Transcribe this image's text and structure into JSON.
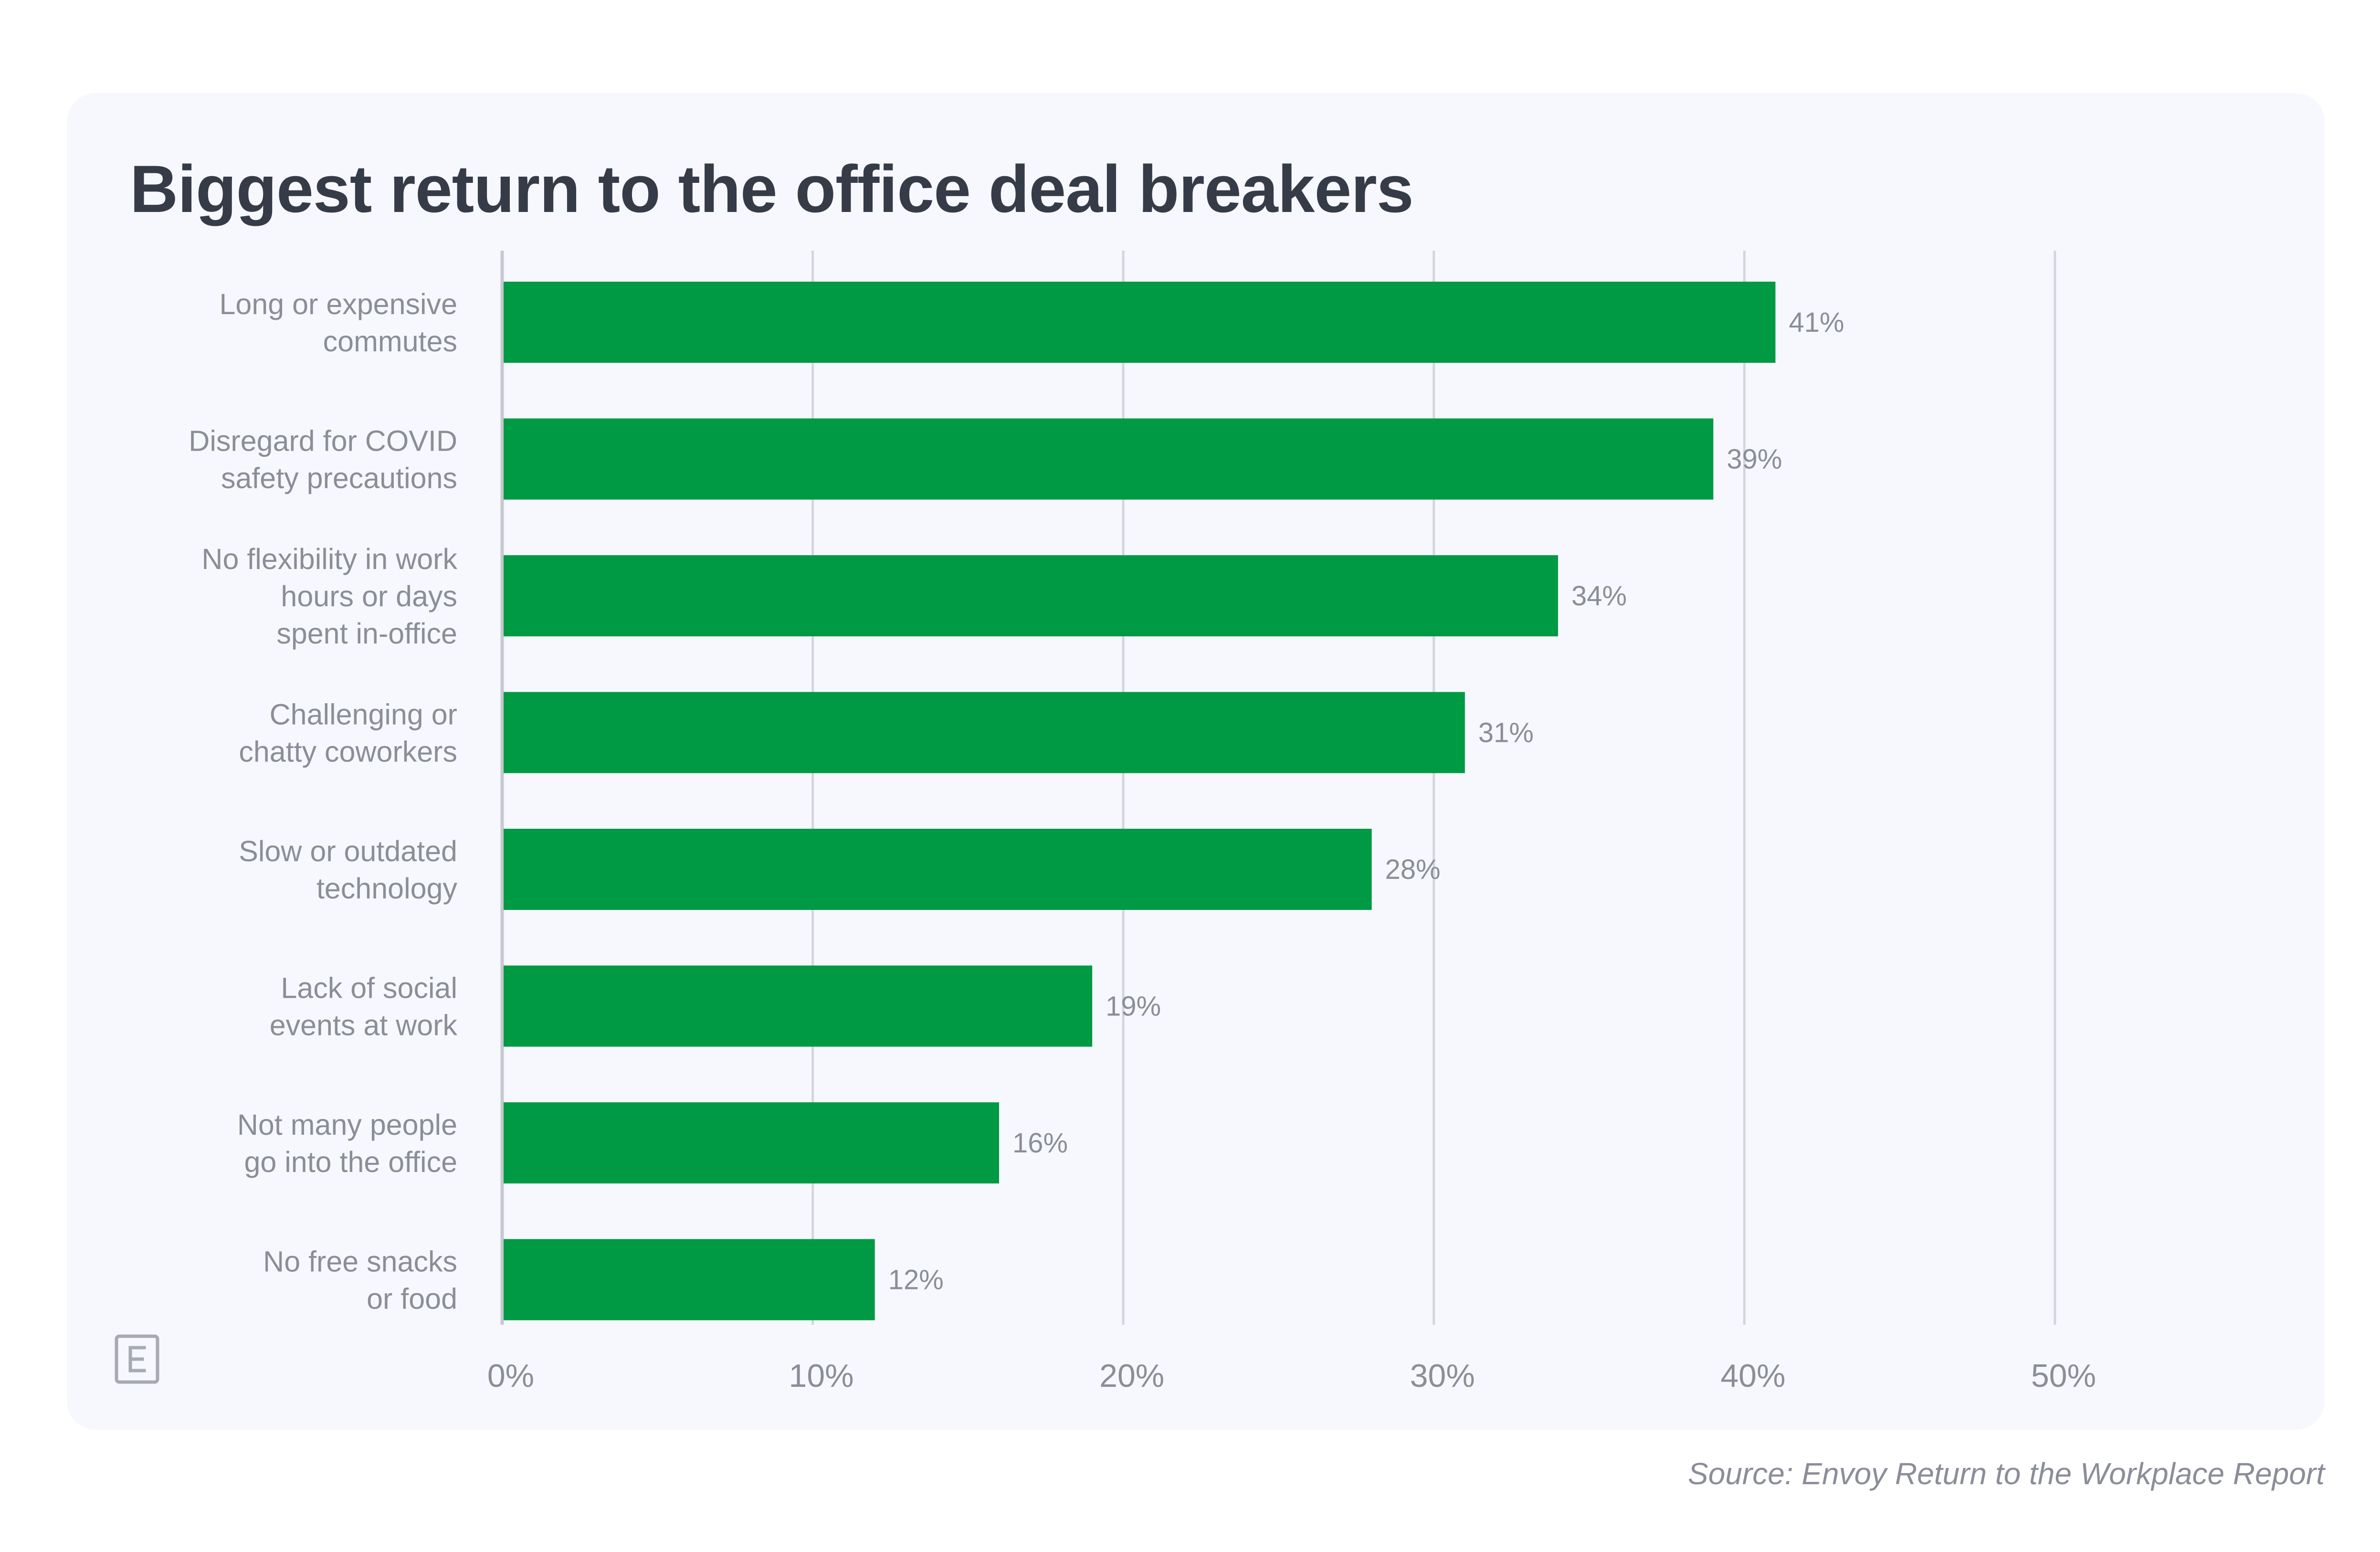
{
  "chart_data": {
    "type": "bar",
    "orientation": "horizontal",
    "title": "Biggest return to the office deal breakers",
    "source": "Source: Envoy Return to the Workplace Report",
    "categories": [
      [
        "Long or expensive",
        "commutes"
      ],
      [
        "Disregard for COVID",
        "safety precautions"
      ],
      [
        "No flexibility in work",
        "hours or days",
        "spent in-office"
      ],
      [
        "Challenging or",
        "chatty coworkers"
      ],
      [
        "Slow or outdated",
        "technology"
      ],
      [
        "Lack of social",
        "events at work"
      ],
      [
        "Not many people",
        "go into the office"
      ],
      [
        "No free snacks",
        "or food"
      ]
    ],
    "values": [
      41,
      39,
      34,
      31,
      28,
      19,
      16,
      12
    ],
    "value_labels": [
      "41%",
      "39%",
      "34%",
      "31%",
      "28%",
      "19%",
      "16%",
      "12%"
    ],
    "xlim": [
      0,
      50
    ],
    "x_ticks": [
      0,
      10,
      20,
      30,
      40,
      50
    ],
    "x_tick_labels": [
      "0%",
      "10%",
      "20%",
      "30%",
      "40%",
      "50%"
    ],
    "grid": true,
    "legend": "none"
  },
  "colors": {
    "bar": "#009944",
    "grid": "#d4d6dd",
    "axis": "#c7c9d0",
    "text": "#8b8e98",
    "title": "#363b48",
    "card": "#f7f8fd"
  },
  "logo": {
    "icon": "envoy-e-logo-icon"
  }
}
